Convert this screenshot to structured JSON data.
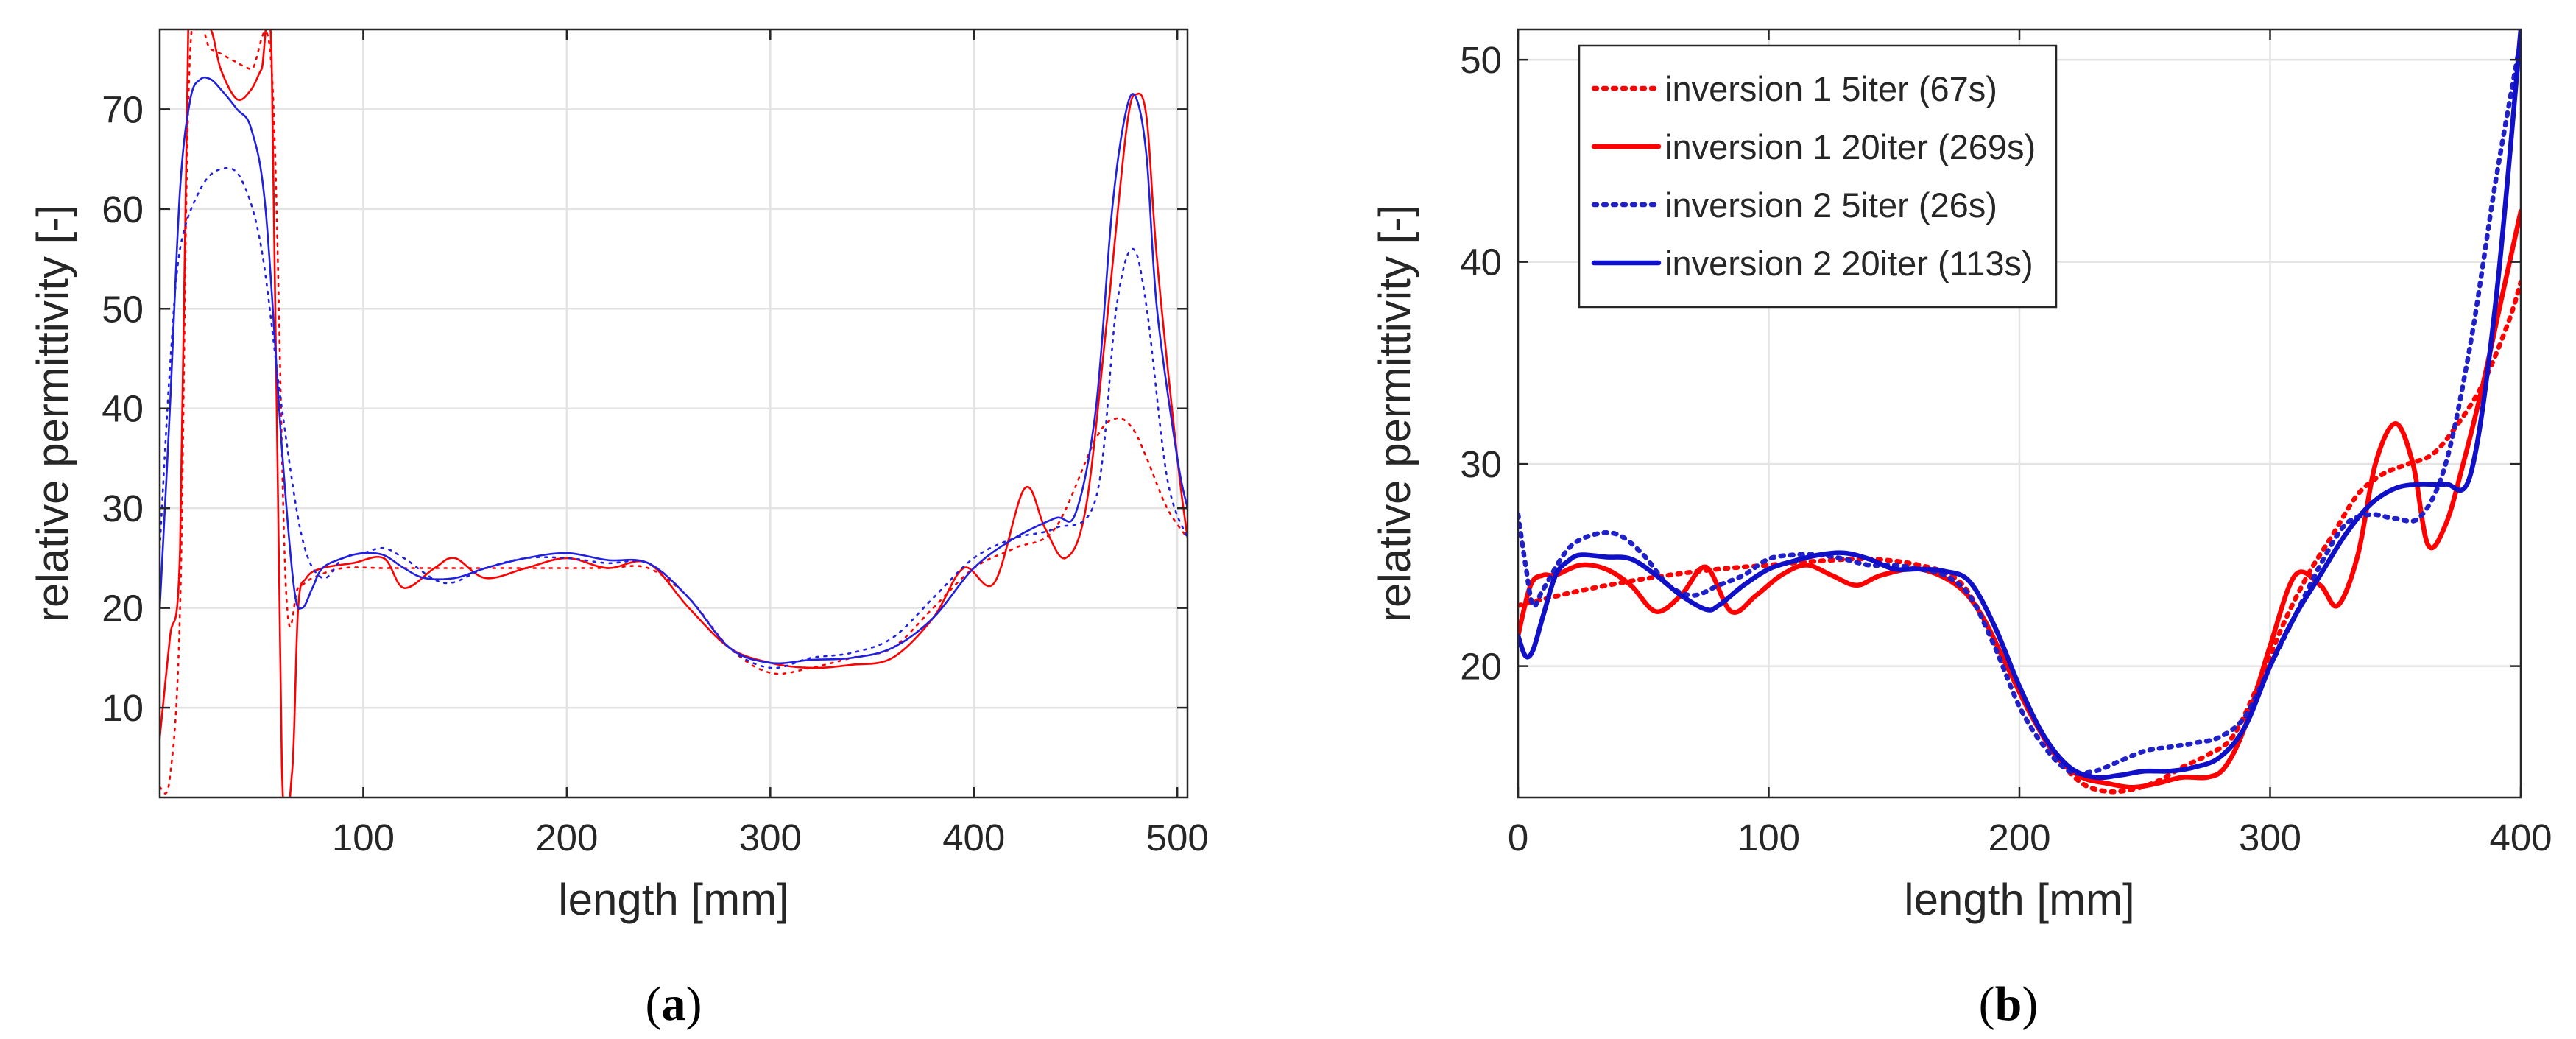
{
  "chart_data": [
    {
      "type": "line",
      "panel": "a",
      "caption": "(a)",
      "xlabel": "length [mm]",
      "ylabel": "relative permittivity [-]",
      "xlim": [
        0,
        505
      ],
      "ylim": [
        1,
        78
      ],
      "xticks": [
        100,
        200,
        300,
        400,
        500
      ],
      "yticks": [
        10,
        20,
        30,
        40,
        50,
        60,
        70
      ],
      "grid": true,
      "series": [
        {
          "name": "inversion 1 5iter",
          "color": "#ff0000",
          "style": "dotted",
          "width": "thin",
          "x": [
            0,
            5,
            10,
            15,
            25,
            35,
            45,
            55,
            62,
            68,
            75,
            90,
            110,
            130,
            150,
            170,
            190,
            200,
            220,
            240,
            260,
            280,
            300,
            320,
            340,
            360,
            380,
            400,
            420,
            440,
            460,
            470,
            478,
            485,
            495,
            505
          ],
          "y": [
            2,
            3,
            20,
            76,
            76,
            75,
            74,
            74,
            22,
            22,
            23,
            24,
            24,
            24,
            24,
            24,
            24,
            24,
            24,
            24,
            21,
            16,
            13.5,
            14,
            15,
            16,
            20,
            24,
            26,
            28,
            37,
            39,
            38,
            35,
            30,
            27
          ]
        },
        {
          "name": "inversion 1 20iter",
          "color": "#ff0000",
          "style": "solid",
          "width": "thin",
          "x": [
            0,
            5,
            10,
            14,
            18,
            25,
            30,
            38,
            45,
            50,
            55,
            60,
            65,
            68,
            72,
            80,
            95,
            110,
            120,
            135,
            145,
            160,
            180,
            200,
            220,
            240,
            260,
            280,
            300,
            320,
            340,
            360,
            380,
            395,
            410,
            425,
            435,
            445,
            455,
            465,
            475,
            480,
            485,
            490,
            500,
            505
          ],
          "y": [
            7,
            17,
            26,
            78,
            78,
            78,
            74,
            71,
            72,
            74,
            75,
            4,
            3.5,
            20,
            23,
            24,
            24.5,
            25,
            22,
            24,
            25,
            23,
            24,
            25,
            24,
            24.5,
            20,
            16,
            14.5,
            14,
            14.3,
            15,
            19,
            24,
            22.5,
            32,
            28,
            25,
            30,
            48,
            68,
            71.5,
            69,
            55,
            35,
            27
          ],
          "clip_max": 78
        },
        {
          "name": "inversion 2 5iter",
          "color": "#2020e0",
          "style": "dotted",
          "width": "thin",
          "x": [
            0,
            5,
            10,
            20,
            30,
            40,
            50,
            60,
            70,
            80,
            90,
            100,
            110,
            120,
            140,
            160,
            180,
            200,
            220,
            240,
            260,
            280,
            300,
            320,
            340,
            360,
            380,
            400,
            420,
            440,
            460,
            470,
            478,
            485,
            495,
            505
          ],
          "y": [
            26,
            44,
            56,
            62,
            64,
            63,
            56,
            40,
            27,
            23,
            25,
            25.5,
            26,
            25,
            22.5,
            24,
            25,
            25,
            24.5,
            24.5,
            21,
            16,
            14,
            15,
            15.5,
            17,
            21,
            25,
            27,
            28,
            31,
            50,
            56,
            50,
            33,
            27
          ],
          "style_dash": "dotted"
        },
        {
          "name": "inversion 2 20iter",
          "color": "#2020e0",
          "style": "solid",
          "width": "thin",
          "x": [
            0,
            5,
            10,
            15,
            20,
            25,
            30,
            38,
            45,
            52,
            60,
            66,
            70,
            75,
            80,
            90,
            100,
            110,
            120,
            130,
            145,
            160,
            180,
            200,
            220,
            240,
            260,
            280,
            300,
            320,
            340,
            360,
            380,
            400,
            420,
            440,
            450,
            460,
            468,
            475,
            480,
            485,
            490,
            500,
            505
          ],
          "y": [
            20,
            40,
            62,
            71,
            73,
            73,
            72,
            70,
            68,
            60,
            36,
            22,
            20,
            22,
            24,
            25,
            25.5,
            25.3,
            24,
            23,
            23,
            24,
            25,
            25.5,
            24.8,
            24.5,
            21,
            16,
            14.5,
            14.8,
            15,
            16,
            19,
            24,
            27,
            29,
            29.5,
            40,
            60,
            70,
            71,
            65,
            50,
            35,
            30
          ]
        }
      ]
    },
    {
      "type": "line",
      "panel": "b",
      "caption": "(b)",
      "xlabel": "length [mm]",
      "ylabel": "relative permittivity [-]",
      "xlim": [
        0,
        400
      ],
      "ylim": [
        13.5,
        51.5
      ],
      "xticks": [
        0,
        100,
        200,
        300,
        400
      ],
      "yticks": [
        20,
        30,
        40,
        50
      ],
      "grid": true,
      "legend": {
        "position": "top-left",
        "entries": [
          "inversion 1 5iter (67s)",
          "inversion 1 20iter (269s)",
          "inversion 2 5iter (26s)",
          "inversion 2 20iter (113s)"
        ]
      },
      "series": [
        {
          "name": "inversion 1 5iter (67s)",
          "color": "#ff0000",
          "style": "dotted",
          "x": [
            0,
            20,
            40,
            60,
            80,
            100,
            120,
            140,
            160,
            175,
            185,
            195,
            205,
            215,
            225,
            235,
            245,
            255,
            265,
            275,
            285,
            295,
            305,
            315,
            325,
            335,
            345,
            355,
            365,
            375,
            385,
            395,
            400
          ],
          "y": [
            23,
            23.6,
            24.1,
            24.5,
            24.8,
            25,
            25.2,
            25.3,
            25,
            24.3,
            22.5,
            20,
            17.5,
            15.5,
            14.2,
            13.8,
            13.9,
            14.3,
            15,
            15.6,
            16.5,
            19,
            22,
            24.5,
            26.5,
            28.5,
            29.5,
            30,
            30.5,
            32,
            34,
            37,
            39
          ]
        },
        {
          "name": "inversion 1 20iter (269s)",
          "color": "#ff0000",
          "style": "solid",
          "x": [
            0,
            5,
            10,
            15,
            25,
            35,
            45,
            55,
            65,
            75,
            85,
            95,
            105,
            115,
            125,
            135,
            145,
            160,
            175,
            185,
            195,
            205,
            215,
            225,
            235,
            245,
            255,
            265,
            275,
            282,
            290,
            300,
            310,
            320,
            327,
            335,
            342,
            350,
            357,
            363,
            370,
            377,
            385,
            392,
            400
          ],
          "y": [
            21.5,
            24,
            24.5,
            24.5,
            25,
            24.8,
            24,
            22.7,
            23.5,
            24.9,
            22.7,
            23.5,
            24.5,
            25,
            24.5,
            24,
            24.5,
            24.8,
            24,
            22.5,
            20,
            17.5,
            15.5,
            14.5,
            14.2,
            14,
            14.2,
            14.5,
            14.5,
            15,
            17,
            21,
            24.5,
            24,
            23,
            25.5,
            30,
            32,
            30,
            26,
            27,
            30,
            34,
            38,
            42.5
          ]
        },
        {
          "name": "inversion 2 5iter (26s)",
          "color": "#2020c8",
          "style": "dotted",
          "x": [
            0,
            3,
            6,
            10,
            20,
            30,
            40,
            50,
            60,
            70,
            80,
            90,
            100,
            110,
            120,
            130,
            140,
            150,
            160,
            170,
            180,
            190,
            200,
            210,
            220,
            230,
            240,
            250,
            260,
            270,
            280,
            290,
            300,
            310,
            320,
            330,
            340,
            350,
            360,
            370,
            380,
            390,
            400
          ],
          "y": [
            27.5,
            25,
            23,
            23.8,
            25.8,
            26.5,
            26.5,
            25.5,
            24,
            23.5,
            24,
            24.5,
            25.3,
            25.5,
            25.5,
            25.3,
            25,
            25,
            24.8,
            24.5,
            23.5,
            21,
            18,
            16,
            14.8,
            14.8,
            15.3,
            15.8,
            16,
            16.2,
            16.5,
            17.5,
            20,
            22.5,
            25,
            27,
            27.5,
            27.3,
            27.4,
            30,
            36,
            44,
            51
          ]
        },
        {
          "name": "inversion 2 20iter (113s)",
          "color": "#1010c8",
          "style": "solid",
          "x": [
            0,
            3,
            6,
            10,
            15,
            20,
            25,
            35,
            45,
            55,
            65,
            75,
            80,
            90,
            100,
            110,
            120,
            130,
            140,
            150,
            160,
            170,
            180,
            190,
            200,
            210,
            220,
            230,
            240,
            250,
            260,
            270,
            280,
            290,
            300,
            310,
            320,
            330,
            340,
            350,
            360,
            370,
            380,
            390,
            400
          ],
          "y": [
            21.5,
            20.5,
            20.8,
            22.5,
            24.5,
            25.2,
            25.5,
            25.4,
            25.3,
            24.5,
            23.5,
            22.8,
            23,
            24,
            24.8,
            25.2,
            25.5,
            25.6,
            25.3,
            24.8,
            24.8,
            24.7,
            24.2,
            22,
            19,
            16.5,
            15,
            14.5,
            14.6,
            14.8,
            14.8,
            15,
            15.5,
            17,
            20,
            22.5,
            24.5,
            26.5,
            28,
            28.8,
            29,
            29,
            29.5,
            38,
            51.5
          ]
        }
      ]
    }
  ]
}
